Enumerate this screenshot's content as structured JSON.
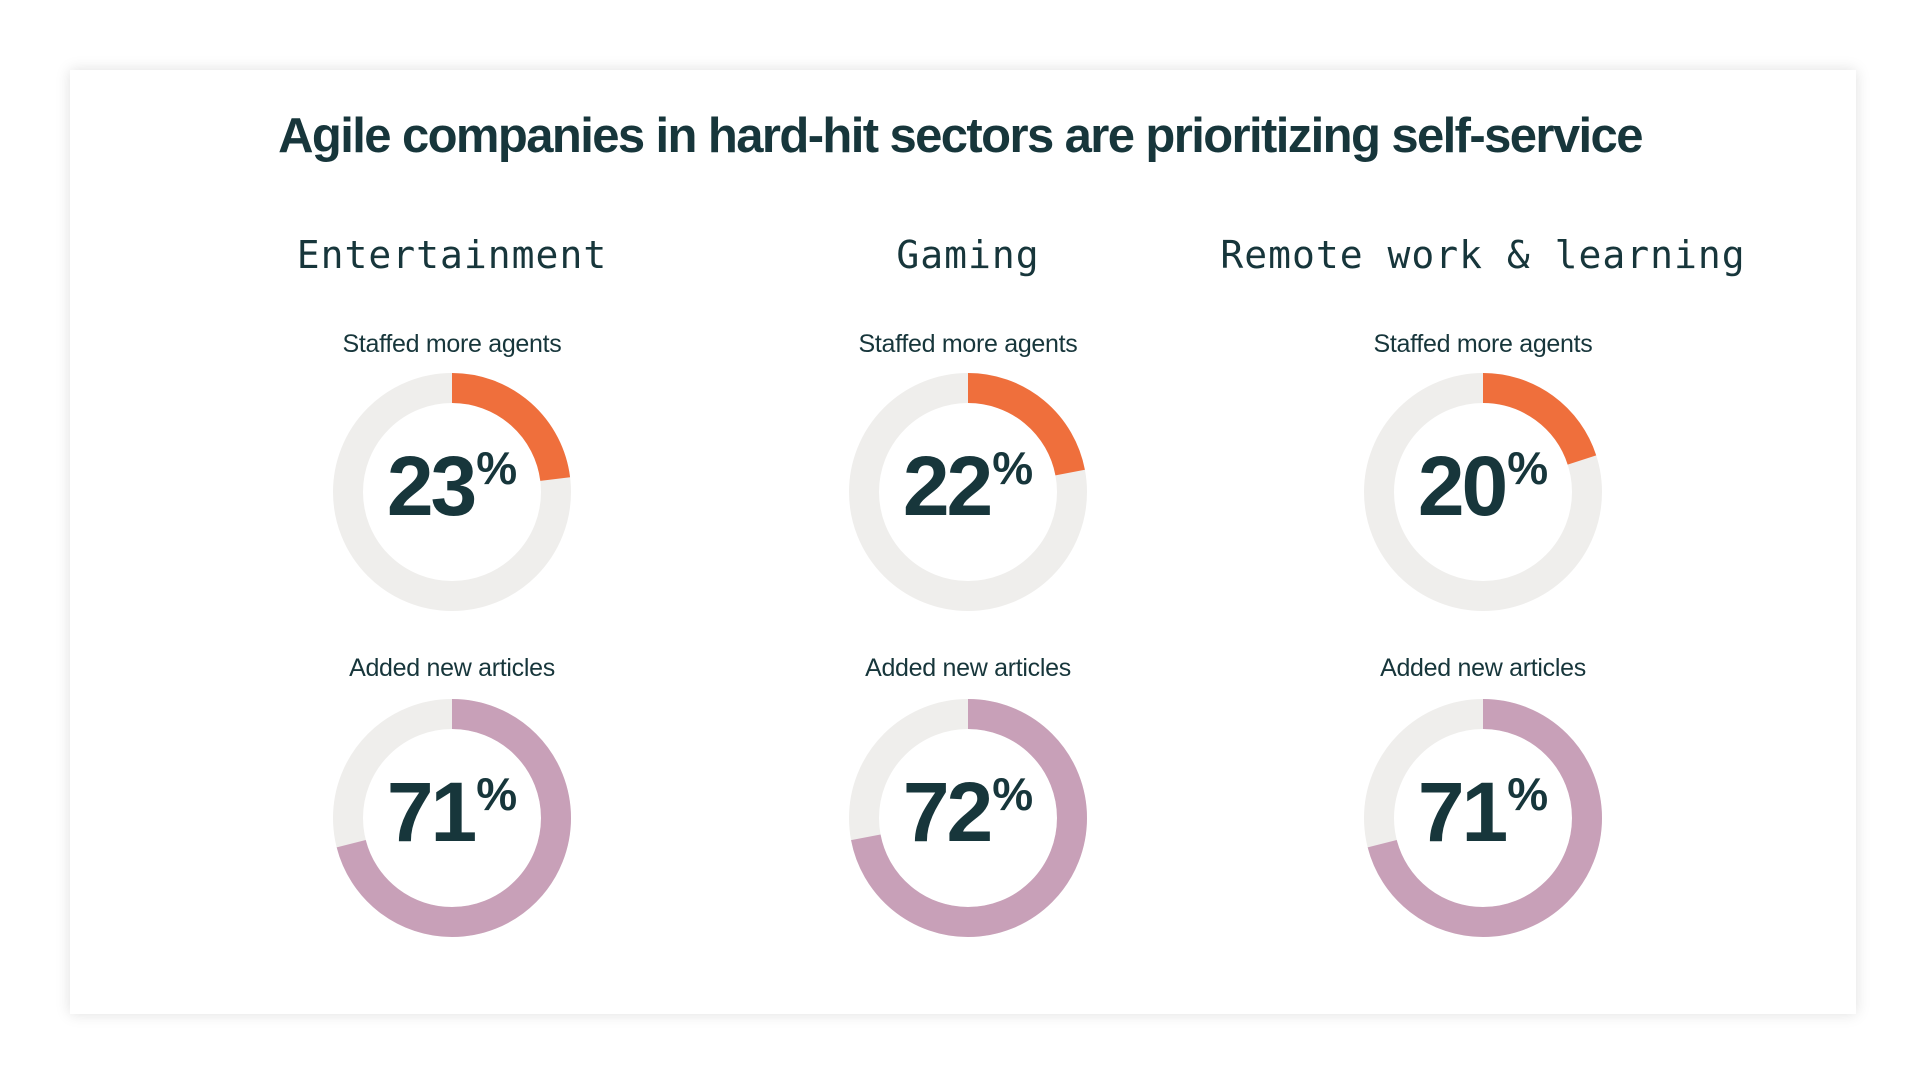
{
  "title": "Agile companies in hard-hit sectors are prioritizing self-service",
  "colors": {
    "text": "#17363b",
    "track": "#efeeec",
    "staffed": "#ef6f3c",
    "articles": "#c8a0b8"
  },
  "percent_sign": "%",
  "chart_data": {
    "type": "donut",
    "title": "Agile companies in hard-hit sectors are prioritizing self-service",
    "metrics": [
      "Staffed more agents",
      "Added new articles"
    ],
    "sectors": [
      {
        "name": "Entertainment",
        "staffed": {
          "label": "Staffed more agents",
          "value": 23,
          "display": "23"
        },
        "articles": {
          "label": "Added new articles",
          "value": 71,
          "display": "71"
        }
      },
      {
        "name": "Gaming",
        "staffed": {
          "label": "Staffed more agents",
          "value": 22,
          "display": "22"
        },
        "articles": {
          "label": "Added new articles",
          "value": 72,
          "display": "72"
        }
      },
      {
        "name": "Remote work & learning",
        "staffed": {
          "label": "Staffed more agents",
          "value": 20,
          "display": "20"
        },
        "articles": {
          "label": "Added new articles",
          "value": 71,
          "display": "71"
        }
      }
    ]
  }
}
